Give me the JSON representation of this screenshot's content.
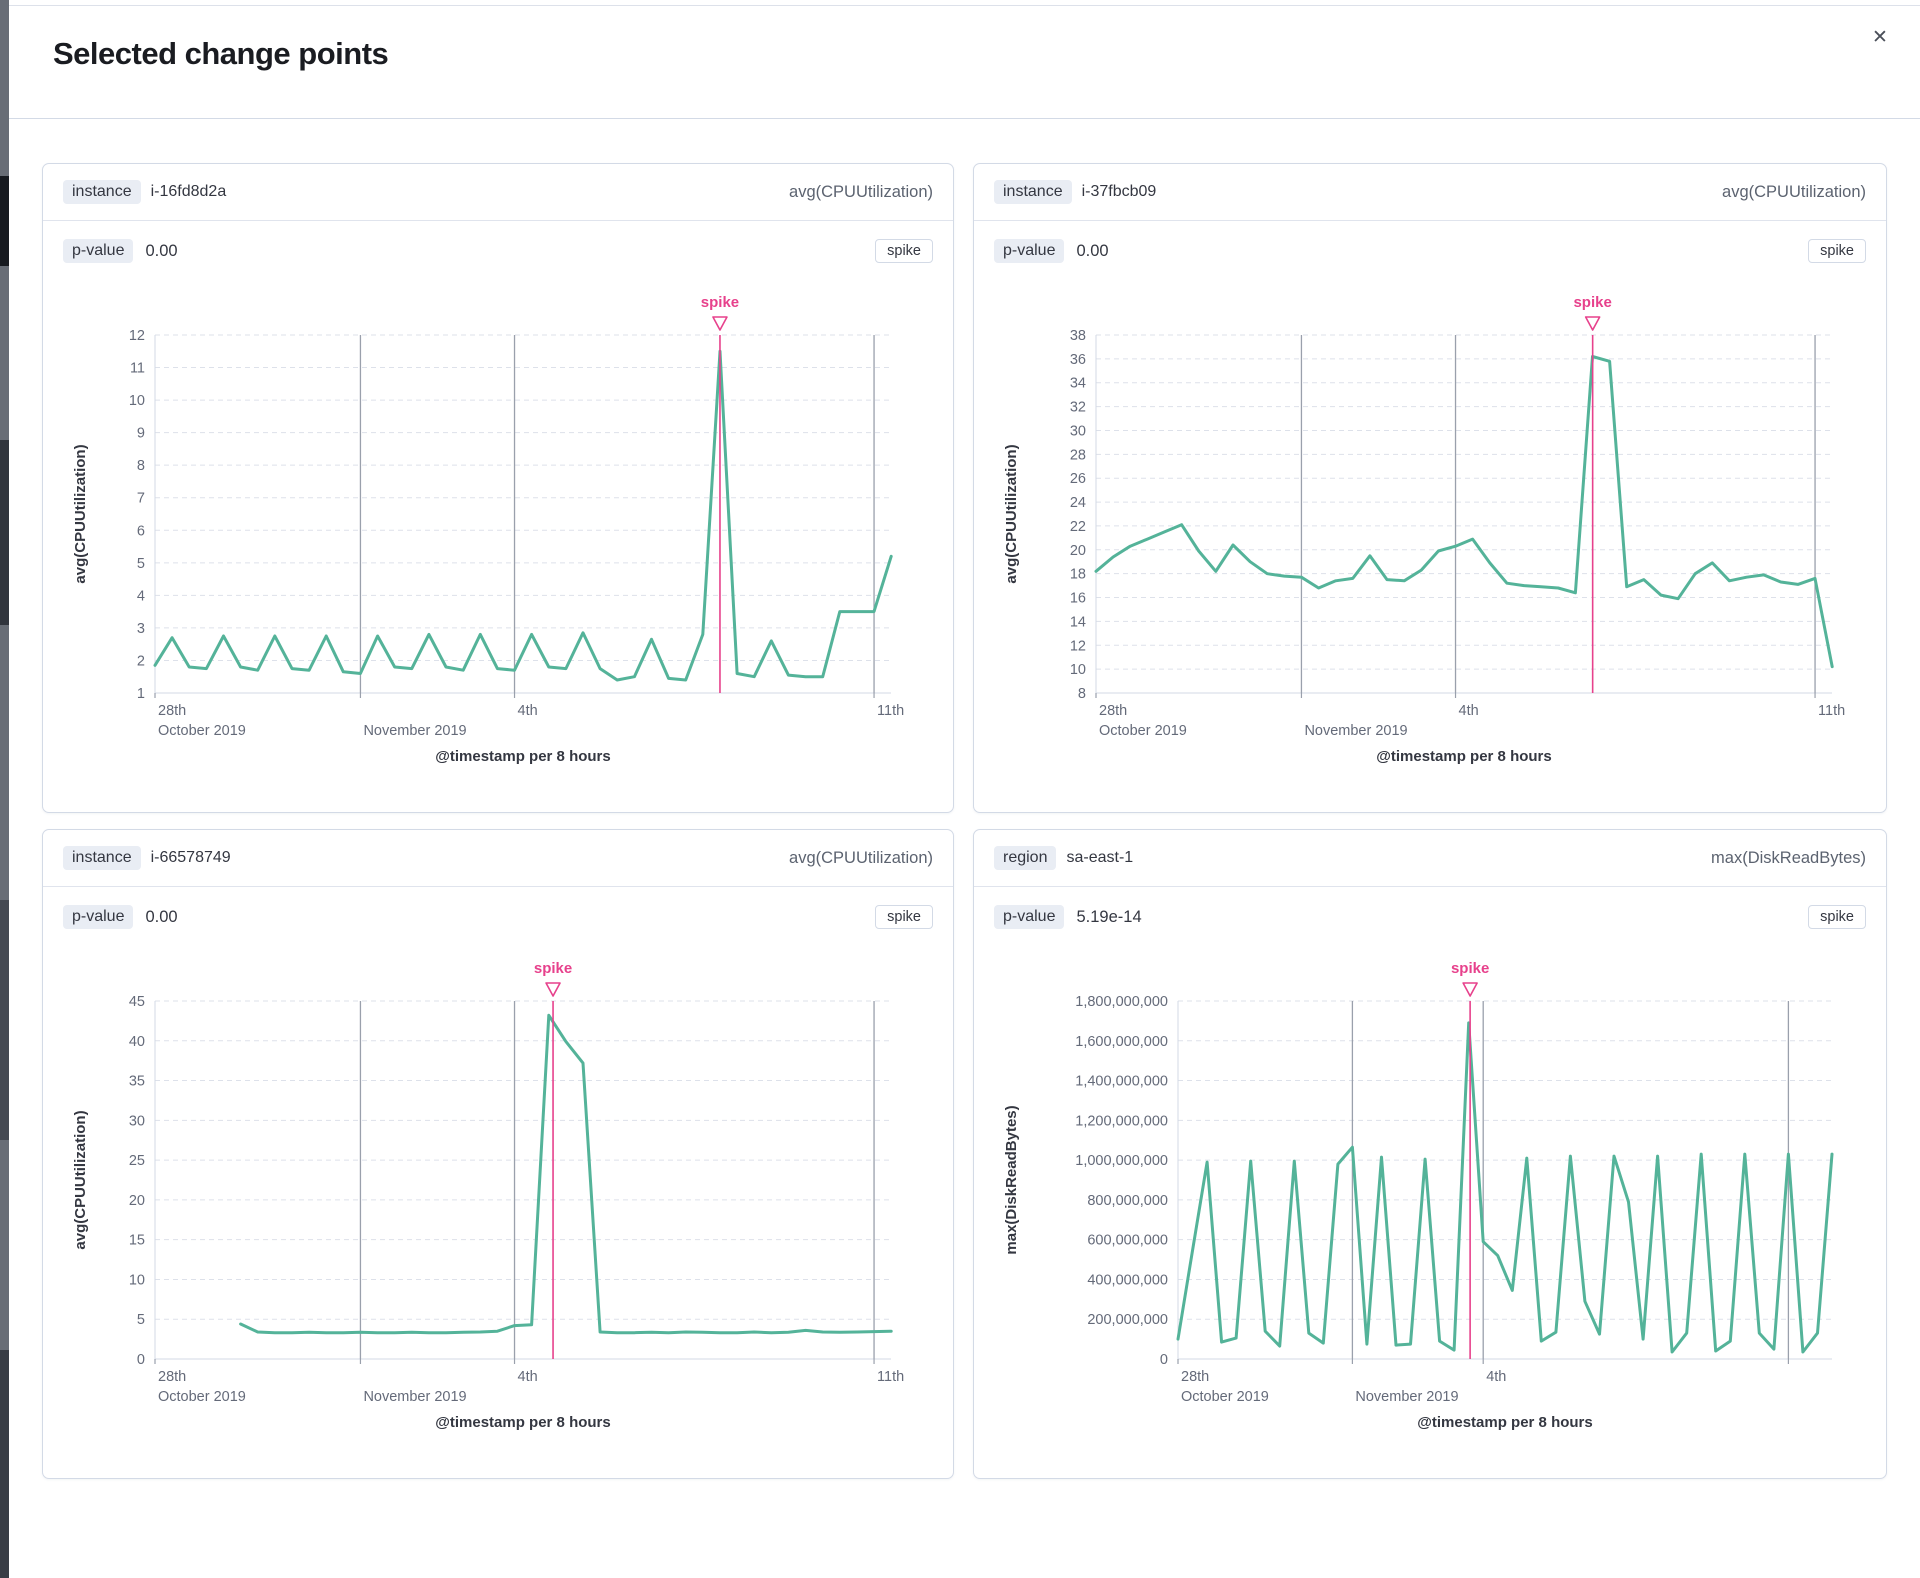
{
  "modal": {
    "title": "Selected change points",
    "close_glyph": "✕"
  },
  "colors": {
    "line": "#54b399",
    "spike": "#e7418c",
    "grid": "#dde1ea",
    "axis": "#d3dae6",
    "tick_text": "#646a79",
    "annotation_line": "#9aa0ac",
    "axis_title_text": "#343741"
  },
  "panels": [
    {
      "key_label": "instance",
      "key_value": "i-16fd8d2a",
      "metric": "avg(CPUUtilization)",
      "pvalue_label": "p-value",
      "pvalue": "0.00",
      "type_badge": "spike",
      "chart_data": {
        "type": "line",
        "ylabel": "avg(CPUUtilization)",
        "xlabel": "@timestamp per 8 hours",
        "y_min": 1,
        "y_max": 12,
        "y_step": 1,
        "y_format": "plain",
        "x_max": 14.33,
        "x_ticks": [
          {
            "day": 0,
            "label": "28th",
            "sublabel": "October 2019"
          },
          {
            "day": 4,
            "label": "",
            "sublabel": "November 2019"
          },
          {
            "day": 7,
            "label": "4th",
            "sublabel": ""
          },
          {
            "day": 14,
            "label": "11th",
            "sublabel": ""
          }
        ],
        "annotation": {
          "label": "spike",
          "day": 11.0
        },
        "x_start": 0,
        "x_step": 0.33333,
        "values": [
          1.85,
          2.7,
          1.8,
          1.75,
          2.75,
          1.8,
          1.7,
          2.75,
          1.75,
          1.7,
          2.75,
          1.65,
          1.6,
          2.75,
          1.8,
          1.75,
          2.8,
          1.8,
          1.7,
          2.8,
          1.75,
          1.7,
          2.8,
          1.8,
          1.75,
          2.85,
          1.75,
          1.4,
          1.5,
          2.65,
          1.45,
          1.4,
          2.8,
          11.5,
          1.6,
          1.5,
          2.6,
          1.55,
          1.5,
          1.5,
          3.5,
          3.5,
          3.5,
          5.2
        ]
      }
    },
    {
      "key_label": "instance",
      "key_value": "i-37fbcb09",
      "metric": "avg(CPUUtilization)",
      "pvalue_label": "p-value",
      "pvalue": "0.00",
      "type_badge": "spike",
      "chart_data": {
        "type": "line",
        "ylabel": "avg(CPUUtilization)",
        "xlabel": "@timestamp per 8 hours",
        "y_min": 8,
        "y_max": 38,
        "y_step": 2,
        "y_format": "plain",
        "x_max": 14.33,
        "x_ticks": [
          {
            "day": 0,
            "label": "28th",
            "sublabel": "October 2019"
          },
          {
            "day": 4,
            "label": "",
            "sublabel": "November 2019"
          },
          {
            "day": 7,
            "label": "4th",
            "sublabel": ""
          },
          {
            "day": 14,
            "label": "11th",
            "sublabel": ""
          }
        ],
        "annotation": {
          "label": "spike",
          "day": 9.67
        },
        "x_start": 0,
        "x_step": 0.33333,
        "values": [
          18.2,
          19.4,
          20.3,
          20.9,
          21.5,
          22.1,
          19.9,
          18.2,
          20.4,
          19.0,
          18.0,
          17.8,
          17.7,
          16.8,
          17.4,
          17.6,
          19.5,
          17.5,
          17.4,
          18.3,
          19.9,
          20.3,
          20.9,
          18.9,
          17.2,
          17.0,
          16.9,
          16.8,
          16.4,
          36.2,
          35.8,
          16.9,
          17.5,
          16.2,
          15.9,
          18.0,
          18.9,
          17.4,
          17.7,
          17.9,
          17.3,
          17.1,
          17.6,
          10.2
        ]
      }
    },
    {
      "key_label": "instance",
      "key_value": "i-66578749",
      "metric": "avg(CPUUtilization)",
      "pvalue_label": "p-value",
      "pvalue": "0.00",
      "type_badge": "spike",
      "chart_data": {
        "type": "line",
        "ylabel": "avg(CPUUtilization)",
        "xlabel": "@timestamp per 8 hours",
        "y_min": 0,
        "y_max": 45,
        "y_step": 5,
        "y_format": "plain",
        "x_max": 14.33,
        "x_ticks": [
          {
            "day": 0,
            "label": "28th",
            "sublabel": "October 2019"
          },
          {
            "day": 4,
            "label": "",
            "sublabel": "November 2019"
          },
          {
            "day": 7,
            "label": "4th",
            "sublabel": ""
          },
          {
            "day": 14,
            "label": "11th",
            "sublabel": ""
          }
        ],
        "annotation": {
          "label": "spike",
          "day": 7.75
        },
        "x_start": 1.6667,
        "x_step": 0.33333,
        "values": [
          4.4,
          3.4,
          3.3,
          3.3,
          3.35,
          3.3,
          3.3,
          3.35,
          3.3,
          3.3,
          3.35,
          3.3,
          3.3,
          3.35,
          3.4,
          3.5,
          4.2,
          4.3,
          43.2,
          39.9,
          37.2,
          3.4,
          3.3,
          3.3,
          3.35,
          3.3,
          3.4,
          3.35,
          3.3,
          3.3,
          3.4,
          3.3,
          3.35,
          3.6,
          3.4,
          3.35,
          3.4,
          3.45,
          3.5
        ]
      }
    },
    {
      "key_label": "region",
      "key_value": "sa-east-1",
      "metric": "max(DiskReadBytes)",
      "pvalue_label": "p-value",
      "pvalue": "5.19e-14",
      "type_badge": "spike",
      "chart_data": {
        "type": "line",
        "ylabel": "max(DiskReadBytes)",
        "xlabel": "@timestamp per 8 hours",
        "y_min": 0,
        "y_max": 1800000000,
        "y_step": 200000000,
        "y_format": "comma",
        "x_max": 15.0,
        "x_ticks": [
          {
            "day": 0,
            "label": "28th",
            "sublabel": "October 2019"
          },
          {
            "day": 4,
            "label": "",
            "sublabel": "November 2019"
          },
          {
            "day": 7,
            "label": "4th",
            "sublabel": ""
          },
          {
            "day": 14,
            "label": "",
            "sublabel": ""
          }
        ],
        "annotation": {
          "label": "spike",
          "day": 6.7
        },
        "x_start": 0,
        "x_step": 0.33333,
        "values": [
          100000000,
          545000000,
          990000000,
          85000000,
          105000000,
          995000000,
          140000000,
          65000000,
          995000000,
          130000000,
          80000000,
          980000000,
          1065000000,
          75000000,
          1015000000,
          70000000,
          75000000,
          1005000000,
          90000000,
          45000000,
          1690000000,
          590000000,
          520000000,
          345000000,
          1010000000,
          90000000,
          135000000,
          1020000000,
          290000000,
          125000000,
          1020000000,
          790000000,
          100000000,
          1020000000,
          35000000,
          130000000,
          1030000000,
          40000000,
          90000000,
          1030000000,
          130000000,
          50000000,
          1030000000,
          35000000,
          130000000,
          1030000000
        ]
      }
    }
  ]
}
